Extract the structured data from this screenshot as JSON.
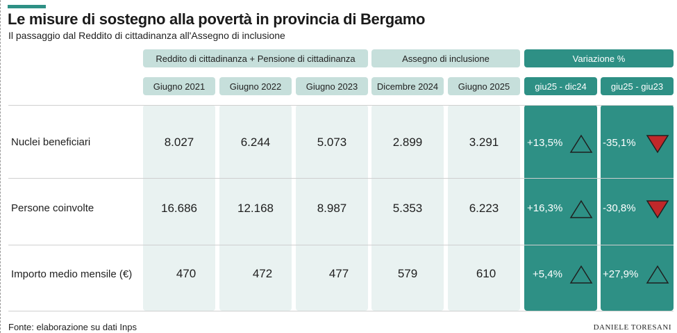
{
  "title": "Le misure di sostegno alla povertà in provincia di Bergamo",
  "subtitle": "Il passaggio dal Reddito di cittadinanza all'Assegno di inclusione",
  "groups": {
    "rdc": "Reddito di cittadinanza + Pensione di cittadinanza",
    "adi": "Assegno di inclusione",
    "var": "Variazione %"
  },
  "columns": [
    "Giugno 2021",
    "Giugno 2022",
    "Giugno 2023",
    "Dicembre 2024",
    "Giugno 2025",
    "giu25 - dic24",
    "giu25 - giu23"
  ],
  "rows": [
    {
      "label": "Nuclei beneficiari",
      "values": [
        "8.027",
        "6.244",
        "5.073",
        "2.899",
        "3.291"
      ],
      "var1": "+13,5%",
      "var2": "-35,1%",
      "dir1": "up",
      "dir2": "down"
    },
    {
      "label": "Persone coinvolte",
      "values": [
        "16.686",
        "12.168",
        "8.987",
        "5.353",
        "6.223"
      ],
      "var1": "+16,3%",
      "var2": "-30,8%",
      "dir1": "up",
      "dir2": "down"
    },
    {
      "label": "Importo medio mensile (€)",
      "values": [
        "470",
        "472",
        "477",
        "579",
        "610"
      ],
      "var1": "+5,4%",
      "var2": "+27,9%",
      "dir1": "up",
      "dir2": "up"
    }
  ],
  "colors": {
    "accent": "#2e9085",
    "light_header": "#c6dfdb",
    "light_block": "#e9f2f1",
    "up_arrow": "#2e9085",
    "down_arrow": "#c0282a"
  },
  "source": "Fonte: elaborazione su dati Inps",
  "author": "DANIELE TORESANI"
}
